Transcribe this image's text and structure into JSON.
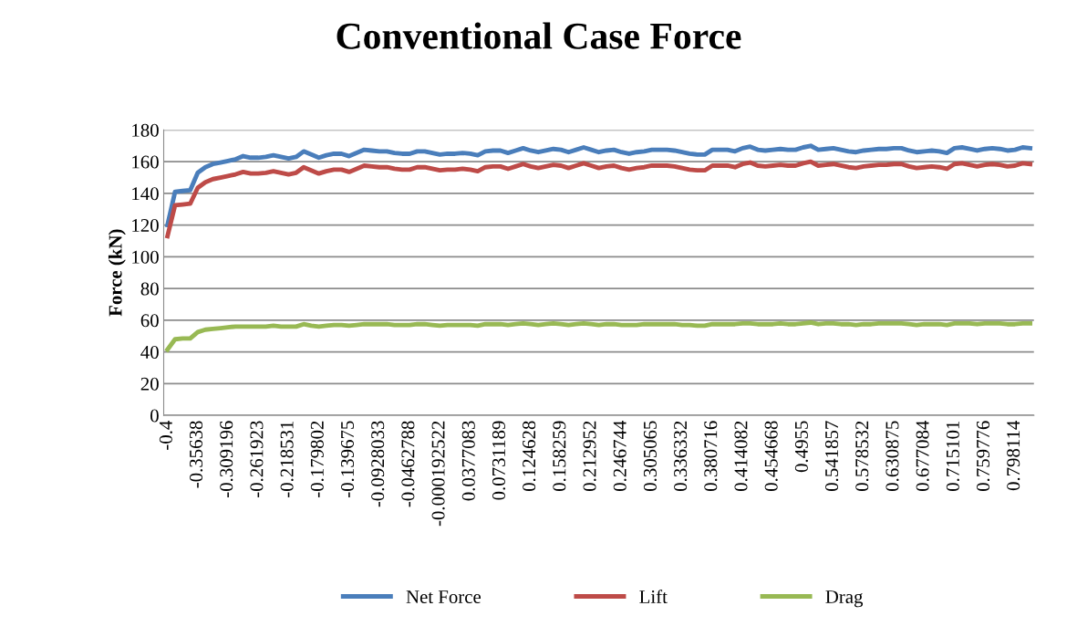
{
  "chart_data": {
    "type": "line",
    "title": "Conventional Case Force",
    "ylabel": "Force (kN)",
    "categories": [
      "-0.4",
      null,
      null,
      null,
      "-0.35638",
      null,
      null,
      null,
      "-0.309196",
      null,
      null,
      null,
      "-0.261923",
      null,
      null,
      null,
      "-0.218531",
      null,
      null,
      null,
      "-0.179802",
      null,
      null,
      null,
      "-0.139675",
      null,
      null,
      null,
      "-0.0928033",
      null,
      null,
      null,
      "-0.0462788",
      null,
      null,
      null,
      "-0.000192522",
      null,
      null,
      null,
      "0.0377083",
      null,
      null,
      null,
      "0.0731189",
      null,
      null,
      null,
      "0.124628",
      null,
      null,
      null,
      "0.158259",
      null,
      null,
      null,
      "0.212952",
      null,
      null,
      null,
      "0.246744",
      null,
      null,
      null,
      "0.305065",
      null,
      null,
      null,
      "0.336332",
      null,
      null,
      null,
      "0.380716",
      null,
      null,
      null,
      "0.414082",
      null,
      null,
      null,
      "0.454668",
      null,
      null,
      null,
      "0.4955",
      null,
      null,
      null,
      "0.541857",
      null,
      null,
      null,
      "0.578532",
      null,
      null,
      null,
      "0.630875",
      null,
      null,
      null,
      "0.677084",
      null,
      null,
      null,
      "0.715101",
      null,
      null,
      null,
      "0.759776",
      null,
      null,
      null,
      "0.798114",
      null,
      null
    ],
    "series": [
      {
        "name": "Net Force",
        "color": "#4a7ebb",
        "values": [
          120,
          141,
          141.5,
          142,
          153,
          156.5,
          158.5,
          159.5,
          160.5,
          161.5,
          163.5,
          162.5,
          162.5,
          163,
          164,
          163,
          162,
          163,
          166.5,
          164.5,
          162.5,
          164,
          165,
          165,
          163.5,
          165.5,
          167.5,
          167,
          166.5,
          166.5,
          165.5,
          165,
          165,
          166.5,
          166.5,
          165.5,
          164.5,
          165,
          165,
          165.5,
          165,
          164,
          166.5,
          167,
          167,
          165.5,
          167,
          168.5,
          167,
          166,
          167,
          168,
          167.5,
          166,
          167.5,
          169,
          167.5,
          166,
          167,
          167.5,
          166,
          165,
          166,
          166.5,
          167.5,
          167.5,
          167.5,
          167,
          166,
          165,
          164.5,
          164.5,
          167.5,
          167.5,
          167.5,
          166.5,
          168.5,
          169.5,
          167.5,
          167,
          167.5,
          168,
          167.5,
          167.5,
          169,
          170,
          167.5,
          168,
          168.5,
          167.5,
          166.5,
          166,
          167,
          167.5,
          168,
          168,
          168.5,
          168.5,
          167,
          166,
          166.5,
          167,
          166.5,
          165.5,
          168.5,
          169,
          168,
          167,
          168,
          168.5,
          168,
          167,
          167.5,
          169,
          168.5
        ]
      },
      {
        "name": "Lift",
        "color": "#be4b48",
        "values": [
          113,
          132.5,
          133,
          133.5,
          143.5,
          147,
          149,
          150,
          151,
          152,
          153.5,
          152.5,
          152.5,
          153,
          154,
          153,
          152,
          153,
          156.5,
          154.5,
          152.5,
          154,
          155,
          155,
          153.5,
          155.5,
          157.5,
          157,
          156.5,
          156.5,
          155.5,
          155,
          155,
          156.5,
          156.5,
          155.5,
          154.5,
          155,
          155,
          155.5,
          155,
          154,
          156.5,
          157,
          157,
          155.5,
          157,
          158.5,
          157,
          156,
          157,
          158,
          157.5,
          156,
          157.5,
          159,
          157.5,
          156,
          157,
          157.5,
          156,
          155,
          156,
          156.5,
          157.5,
          157.5,
          157.5,
          157,
          156,
          155,
          154.5,
          154.5,
          157.5,
          157.5,
          157.5,
          156.5,
          158.5,
          159.5,
          157.5,
          157,
          157.5,
          158,
          157.5,
          157.5,
          159,
          160,
          157.5,
          158,
          158.5,
          157.5,
          156.5,
          156,
          157,
          157.5,
          158,
          158,
          158.5,
          158.5,
          157,
          156,
          156.5,
          157,
          156.5,
          155.5,
          158.5,
          159,
          158,
          157,
          158,
          158.5,
          158,
          157,
          157.5,
          159,
          158.5
        ]
      },
      {
        "name": "Drag",
        "color": "#98b954",
        "values": [
          41.5,
          48,
          48.5,
          48.5,
          52.5,
          54,
          54.5,
          55,
          55.5,
          56,
          56,
          56,
          56,
          56,
          56.5,
          56,
          56,
          56,
          57.5,
          56.5,
          56,
          56.5,
          57,
          57,
          56.5,
          57,
          57.5,
          57.5,
          57.5,
          57.5,
          57,
          57,
          57,
          57.5,
          57.5,
          57,
          56.5,
          57,
          57,
          57,
          57,
          56.5,
          57.5,
          57.5,
          57.5,
          57,
          57.5,
          58,
          57.5,
          57,
          57.5,
          58,
          57.5,
          57,
          57.5,
          58,
          57.5,
          57,
          57.5,
          57.5,
          57,
          57,
          57,
          57.5,
          57.5,
          57.5,
          57.5,
          57.5,
          57,
          57,
          56.5,
          56.5,
          57.5,
          57.5,
          57.5,
          57.5,
          58,
          58,
          57.5,
          57.5,
          57.5,
          58,
          57.5,
          57.5,
          58,
          58.5,
          57.5,
          58,
          58,
          57.5,
          57.5,
          57,
          57.5,
          57.5,
          58,
          58,
          58,
          58,
          57.5,
          57,
          57.5,
          57.5,
          57.5,
          57,
          58,
          58,
          58,
          57.5,
          58,
          58,
          58,
          57.5,
          57.5,
          58,
          58
        ]
      }
    ],
    "ylim": [
      0,
      180
    ],
    "yticks": [
      0,
      20,
      40,
      60,
      80,
      100,
      120,
      140,
      160,
      180
    ],
    "grid": "y",
    "legend": "bottom",
    "marker": "none",
    "line_style": "solid"
  }
}
